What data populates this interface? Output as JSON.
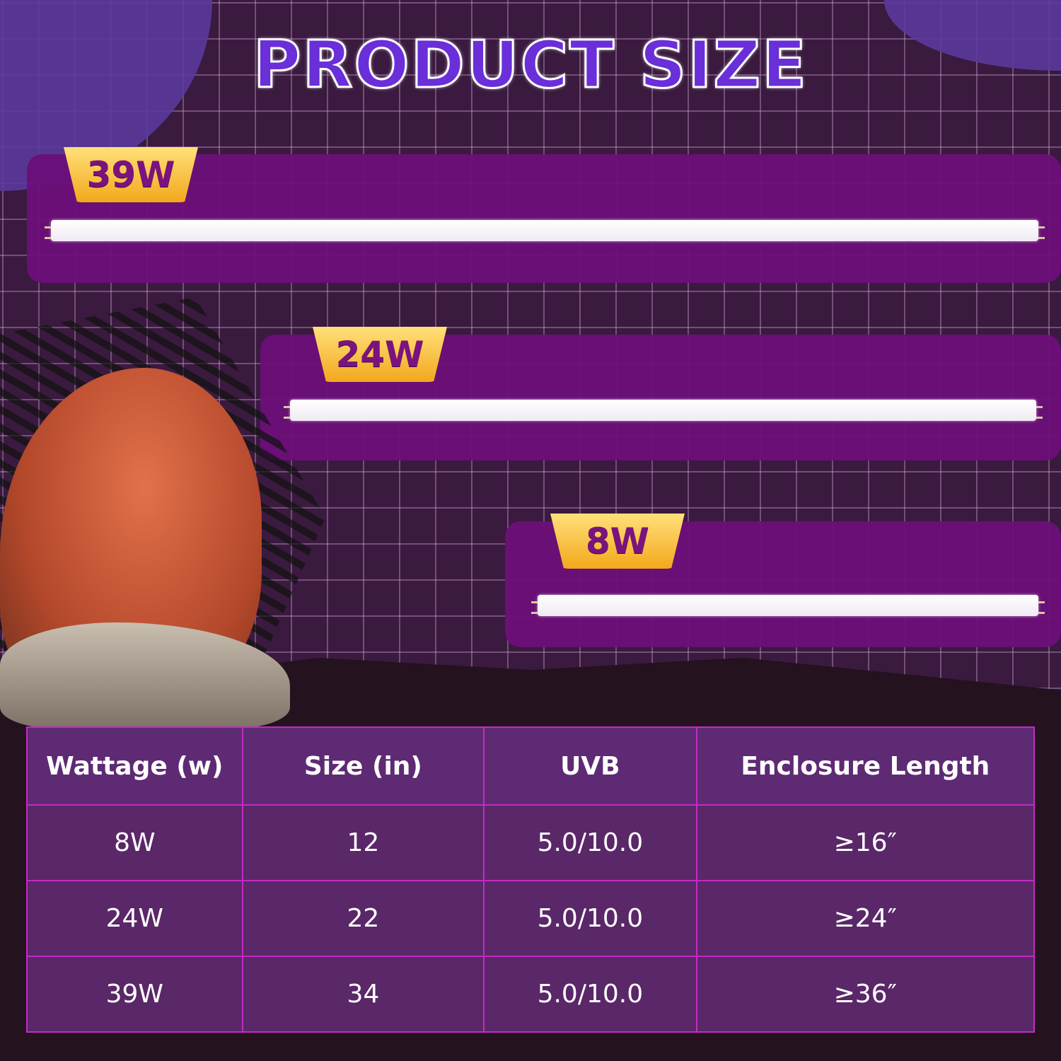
{
  "title": "PRODUCT SIZE",
  "colors": {
    "panel": "#6b0f79",
    "title": "#6a2fd8",
    "badge": "#f3a81c",
    "table_border": "#c22bc4"
  },
  "products": [
    {
      "badge": "39W"
    },
    {
      "badge": "24W"
    },
    {
      "badge": "8W"
    }
  ],
  "table": {
    "headers": [
      "Wattage (w)",
      "Size (in)",
      "UVB",
      "Enclosure Length"
    ],
    "rows": [
      [
        "8W",
        "12",
        "5.0/10.0",
        "≥16″"
      ],
      [
        "24W",
        "22",
        "5.0/10.0",
        "≥24″"
      ],
      [
        "39W",
        "34",
        "5.0/10.0",
        "≥36″"
      ]
    ]
  }
}
